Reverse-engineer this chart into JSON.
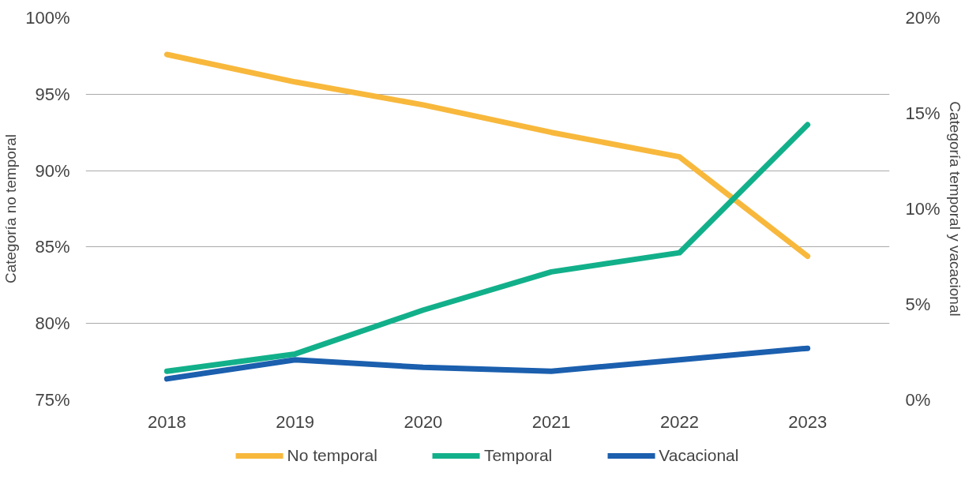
{
  "chart_data": {
    "type": "line",
    "ylabel": "Categoría no temporal",
    "y2label": "Categoría temporal y vacacional",
    "categories": [
      "2018",
      "2019",
      "2020",
      "2021",
      "2022",
      "2023"
    ],
    "series": [
      {
        "name": "No temporal",
        "color": "#f8b83c",
        "values": [
          97.6,
          95.8,
          94.3,
          92.5,
          90.9,
          84.4
        ]
      },
      {
        "name": "Temporal",
        "color": "#12b08a",
        "axis": "y2",
        "values": [
          1.5,
          2.4,
          4.7,
          6.7,
          7.7,
          14.4
        ]
      },
      {
        "name": "Vacacional",
        "color": "#1b5fae",
        "axis": "y2",
        "values": [
          1.1,
          2.1,
          1.7,
          1.5,
          2.1,
          2.7
        ]
      }
    ],
    "ylim": [
      75,
      100
    ],
    "yticks": [
      {
        "value": 75,
        "label": "75%"
      },
      {
        "value": 80,
        "label": "80%"
      },
      {
        "value": 85,
        "label": "85%"
      },
      {
        "value": 90,
        "label": "90%"
      },
      {
        "value": 95,
        "label": "95%"
      },
      {
        "value": 100,
        "label": "100%"
      }
    ],
    "y2lim": [
      0,
      20
    ],
    "y2ticks": [
      {
        "value": 0,
        "label": "0%"
      },
      {
        "value": 5,
        "label": "5%"
      },
      {
        "value": 10,
        "label": "10%"
      },
      {
        "value": 15,
        "label": "15%"
      },
      {
        "value": 20,
        "label": "20%"
      }
    ],
    "grid": "y",
    "legend": "bottom",
    "marker": "none",
    "line_style": "solid"
  }
}
